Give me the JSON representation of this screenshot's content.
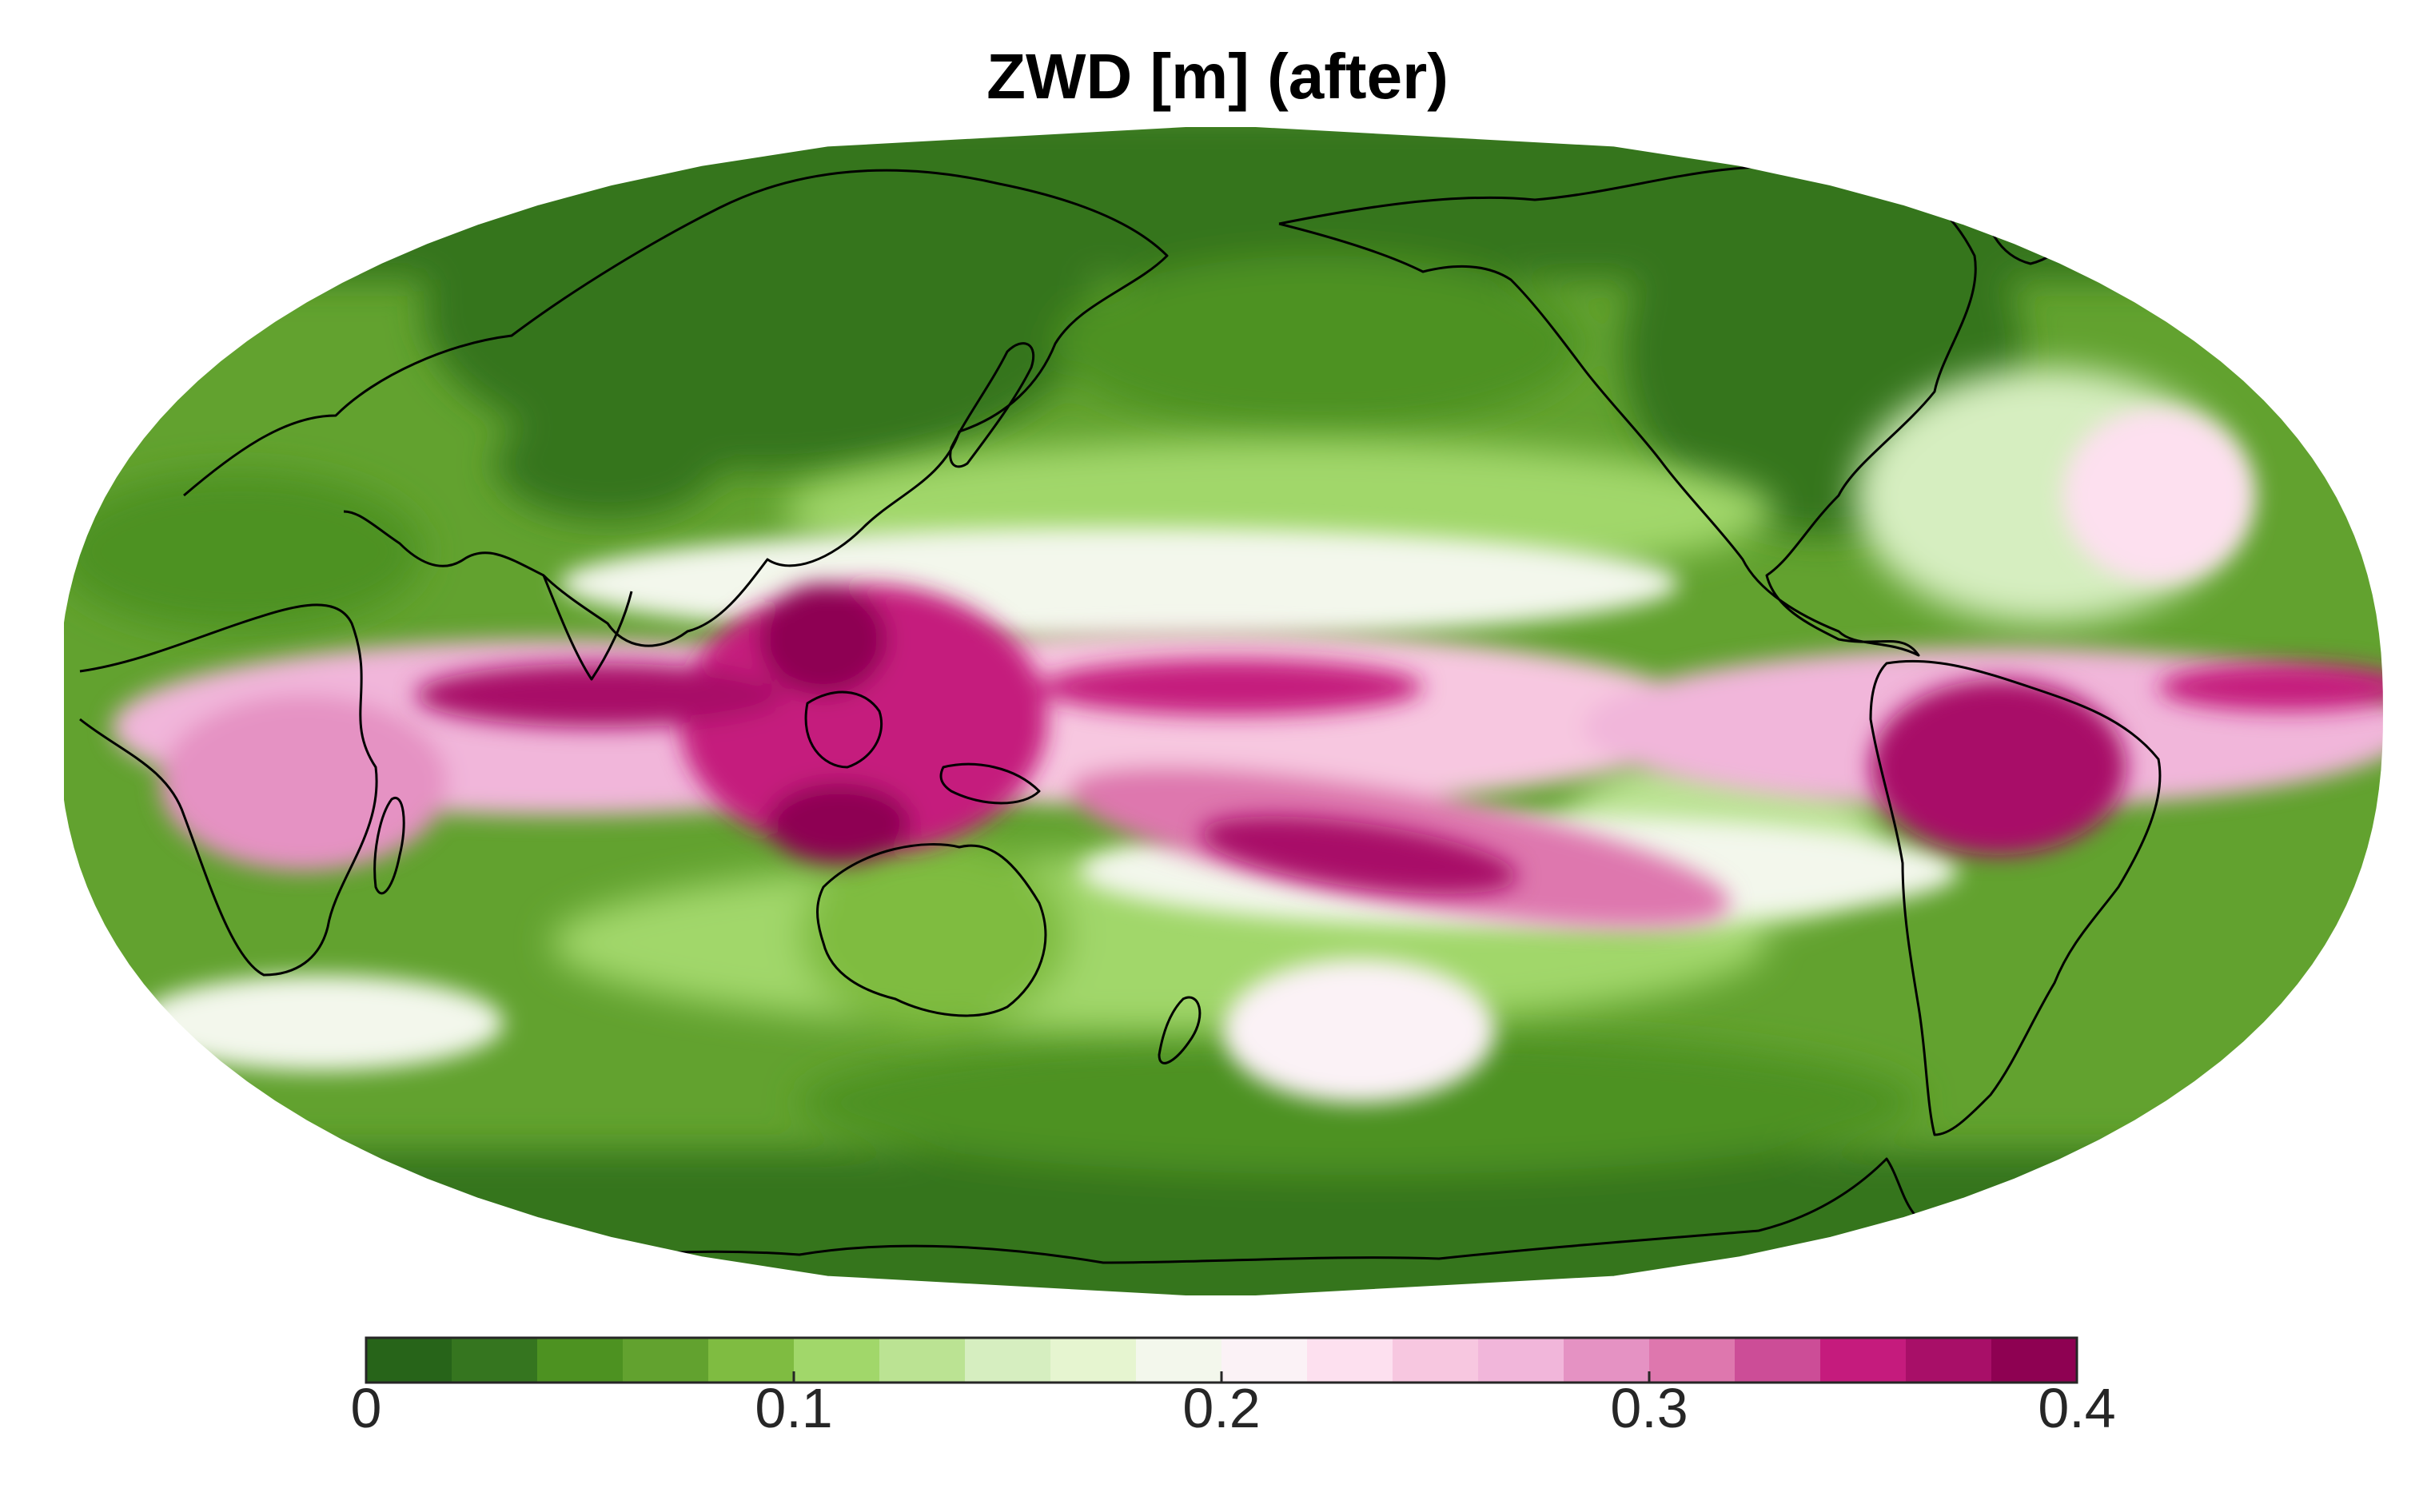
{
  "title": "ZWD [m] (after)",
  "colorbar": {
    "min": 0,
    "max": 0.4,
    "step": 0.02,
    "ticks": [
      {
        "value": 0,
        "label": "0"
      },
      {
        "value": 0.1,
        "label": "0.1"
      },
      {
        "value": 0.2,
        "label": "0.2"
      },
      {
        "value": 0.3,
        "label": "0.3"
      },
      {
        "value": 0.4,
        "label": "0.4"
      }
    ],
    "colors": [
      "#276419",
      "#35751f",
      "#4d9221",
      "#62a22f",
      "#7fbc41",
      "#a1d76a",
      "#bbe393",
      "#d6eec0",
      "#e6f5d0",
      "#f3f7ec",
      "#fbf2f6",
      "#fde0ef",
      "#f7c7e0",
      "#f1b6da",
      "#e592c3",
      "#de77ae",
      "#cc4d97",
      "#c51b7d",
      "#a80f68",
      "#8e0152"
    ]
  }
}
